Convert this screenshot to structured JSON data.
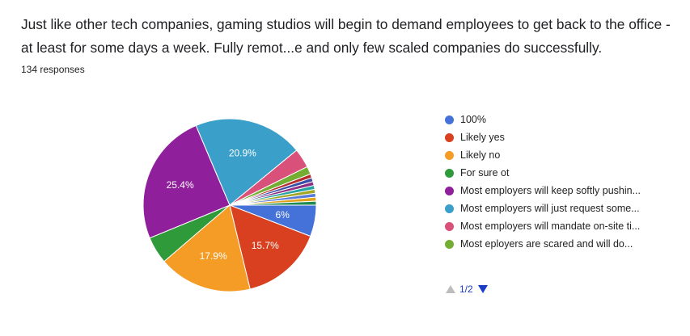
{
  "question": {
    "text": "Just like other tech companies, gaming studios will begin to demand employees to get back to the office - at least for some days a week. Fully remot...e and only few scaled companies do successfully.",
    "responses": "134 responses"
  },
  "pager": {
    "text": "1/2"
  },
  "chart_data": {
    "type": "pie",
    "title": "",
    "slices": [
      {
        "label": "100%",
        "value": 6.0,
        "display": "6%",
        "color": "#4472d8"
      },
      {
        "label": "Likely yes",
        "value": 15.7,
        "display": "15.7%",
        "color": "#d8401f"
      },
      {
        "label": "Likely no",
        "value": 17.9,
        "display": "17.9%",
        "color": "#f59c26"
      },
      {
        "label": "For sure ot",
        "value": 5.2,
        "display": "",
        "color": "#2f9a3a"
      },
      {
        "label": "Most employers will keep softly pushin...",
        "value": 25.4,
        "display": "25.4%",
        "color": "#8f1f9b"
      },
      {
        "label": "Most employers will just request some...",
        "value": 20.9,
        "display": "20.9%",
        "color": "#3a9fc9"
      },
      {
        "label": "Most employers will mandate on-site ti...",
        "value": 3.7,
        "display": "",
        "color": "#d9507a"
      },
      {
        "label": "Most eployers are scared and will do...",
        "value": 1.5,
        "display": "",
        "color": "#73ad32"
      },
      {
        "label": "",
        "value": 0.75,
        "display": "",
        "color": "#b52d2d"
      },
      {
        "label": "",
        "value": 0.75,
        "display": "",
        "color": "#3b4fa8"
      },
      {
        "label": "",
        "value": 0.75,
        "display": "",
        "color": "#8d2f85"
      },
      {
        "label": "",
        "value": 0.75,
        "display": "",
        "color": "#26a3a3"
      },
      {
        "label": "",
        "value": 0.75,
        "display": "",
        "color": "#a2a623"
      },
      {
        "label": "",
        "value": 0.75,
        "display": "",
        "color": "#5a7bd9"
      },
      {
        "label": "",
        "value": 0.75,
        "display": "",
        "color": "#e3a21a"
      },
      {
        "label": "",
        "value": 0.75,
        "display": "",
        "color": "#1f8a52"
      }
    ],
    "legend_position": "right",
    "legend_visible_count": 8
  }
}
